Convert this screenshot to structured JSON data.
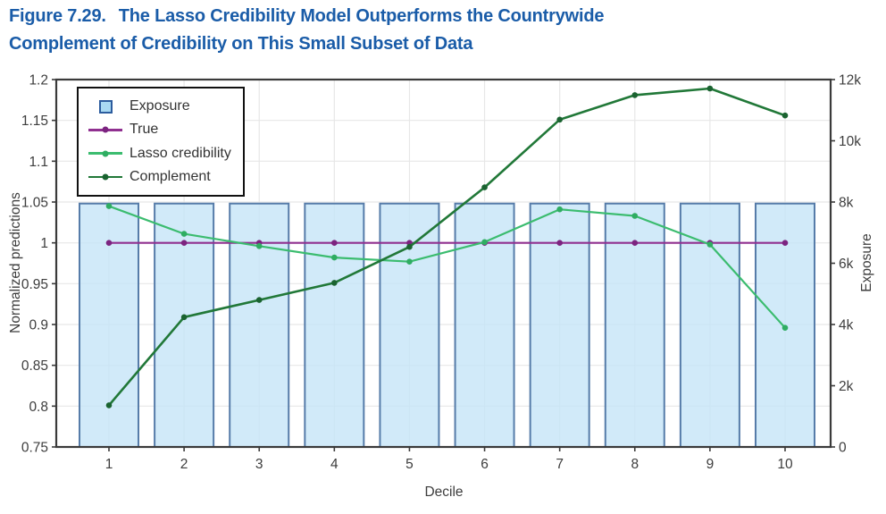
{
  "title": {
    "label": "Figure 7.29.",
    "line1": "The Lasso Credibility Model Outperforms the Countrywide",
    "line2": "Complement of Credibility on This Small Subset of Data"
  },
  "colors": {
    "title_text": "#1A5CA8",
    "axis_text": "#3D3D3D",
    "plot_border": "#3A3A3A",
    "grid": "#E7E7E7",
    "legend_border": "#111111",
    "legend_text": "#333333"
  },
  "chart_data": {
    "type": "bar+line",
    "title": "",
    "xlabel": "Decile",
    "ylabel_left": "Normalized predictions",
    "ylabel_right": "Exposure",
    "categories": [
      "1",
      "2",
      "3",
      "4",
      "5",
      "6",
      "7",
      "8",
      "9",
      "10"
    ],
    "ylim_left": [
      0.75,
      1.2
    ],
    "ylim_right": [
      0,
      12000
    ],
    "grid": true,
    "legend_position": "top-left",
    "yticks_left": [
      {
        "value": 1.2,
        "label": "1.2"
      },
      {
        "value": 1.15,
        "label": "1.15"
      },
      {
        "value": 1.1,
        "label": "1.1"
      },
      {
        "value": 1.05,
        "label": "1.05"
      },
      {
        "value": 1.0,
        "label": "1"
      },
      {
        "value": 0.95,
        "label": "0.95"
      },
      {
        "value": 0.9,
        "label": "0.9"
      },
      {
        "value": 0.85,
        "label": "0.85"
      },
      {
        "value": 0.8,
        "label": "0.8"
      },
      {
        "value": 0.75,
        "label": "0.75"
      }
    ],
    "yticks_right": [
      {
        "value": 0,
        "label": "0"
      },
      {
        "value": 2000,
        "label": "2k"
      },
      {
        "value": 4000,
        "label": "4k"
      },
      {
        "value": 6000,
        "label": "6k"
      },
      {
        "value": 8000,
        "label": "8k"
      },
      {
        "value": 10000,
        "label": "10k"
      },
      {
        "value": 12000,
        "label": "12k"
      }
    ],
    "series": [
      {
        "name": "Exposure",
        "type": "bar",
        "axis": "right",
        "fill": "#C6E5F8",
        "stroke": "#567CA9",
        "legend_fill": "#A9D9F2",
        "legend_stroke": "#2C5C9E",
        "values": [
          7950,
          7950,
          7950,
          7950,
          7950,
          7950,
          7950,
          7950,
          7950,
          7950
        ]
      },
      {
        "name": "True",
        "type": "line",
        "axis": "left",
        "color": "#903090",
        "marker_color": "#7C2480",
        "values": [
          1.0,
          1.0,
          1.0,
          1.0,
          1.0,
          1.0,
          1.0,
          1.0,
          1.0,
          1.0
        ]
      },
      {
        "name": "Lasso credibility",
        "type": "line",
        "axis": "left",
        "color": "#3BBC6F",
        "marker_color": "#2FAD62",
        "values": [
          1.045,
          1.011,
          0.996,
          0.982,
          0.977,
          1.001,
          1.041,
          1.033,
          0.998,
          0.896
        ]
      },
      {
        "name": "Complement",
        "type": "line",
        "axis": "left",
        "color": "#217838",
        "marker_color": "#1A6330",
        "values": [
          0.801,
          0.909,
          0.93,
          0.951,
          0.995,
          1.068,
          1.151,
          1.181,
          1.189,
          1.156
        ]
      }
    ]
  }
}
